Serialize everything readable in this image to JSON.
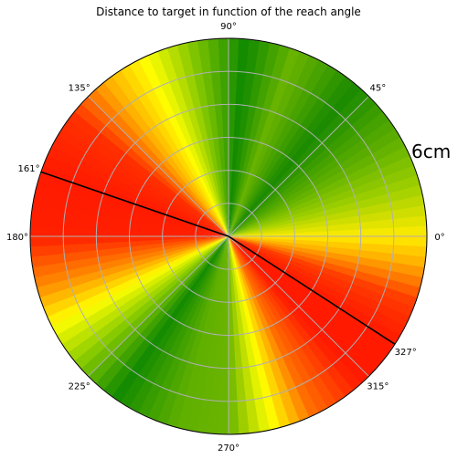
{
  "chart_data": {
    "type": "polar_heatmap",
    "title": "Distance to target in function of the reach angle",
    "angle_ticks": [
      {
        "angle": 0,
        "label": "0°"
      },
      {
        "angle": 45,
        "label": "45°"
      },
      {
        "angle": 90,
        "label": "90°"
      },
      {
        "angle": 135,
        "label": "135°"
      },
      {
        "angle": 161,
        "label": "161°"
      },
      {
        "angle": 180,
        "label": "180°"
      },
      {
        "angle": 225,
        "label": "225°"
      },
      {
        "angle": 270,
        "label": "270°"
      },
      {
        "angle": 315,
        "label": "315°"
      },
      {
        "angle": 327,
        "label": "327°"
      }
    ],
    "reach_lines": [
      161,
      327
    ],
    "radius_label": "6cm",
    "grid": true,
    "grid_rings": 6,
    "color_stops": [
      {
        "angle": 0,
        "color": "#ffec00"
      },
      {
        "angle": 15,
        "color": "#9fd000"
      },
      {
        "angle": 30,
        "color": "#5fb000"
      },
      {
        "angle": 50,
        "color": "#1a8a00"
      },
      {
        "angle": 70,
        "color": "#6ab400"
      },
      {
        "angle": 85,
        "color": "#108a00"
      },
      {
        "angle": 100,
        "color": "#7ac200"
      },
      {
        "angle": 115,
        "color": "#ffff00"
      },
      {
        "angle": 128,
        "color": "#ffb000"
      },
      {
        "angle": 142,
        "color": "#ff3000"
      },
      {
        "angle": 161,
        "color": "#ff1a00"
      },
      {
        "angle": 180,
        "color": "#ff2000"
      },
      {
        "angle": 195,
        "color": "#ff8c00"
      },
      {
        "angle": 207,
        "color": "#ffff00"
      },
      {
        "angle": 220,
        "color": "#8ccc00"
      },
      {
        "angle": 235,
        "color": "#128a00"
      },
      {
        "angle": 255,
        "color": "#5fb000"
      },
      {
        "angle": 270,
        "color": "#6ab400"
      },
      {
        "angle": 283,
        "color": "#ffff00"
      },
      {
        "angle": 295,
        "color": "#ff7000"
      },
      {
        "angle": 312,
        "color": "#ff1a00"
      },
      {
        "angle": 327,
        "color": "#ff1a00"
      },
      {
        "angle": 340,
        "color": "#ff3a00"
      },
      {
        "angle": 352,
        "color": "#ffb000"
      },
      {
        "angle": 360,
        "color": "#ffec00"
      }
    ]
  }
}
